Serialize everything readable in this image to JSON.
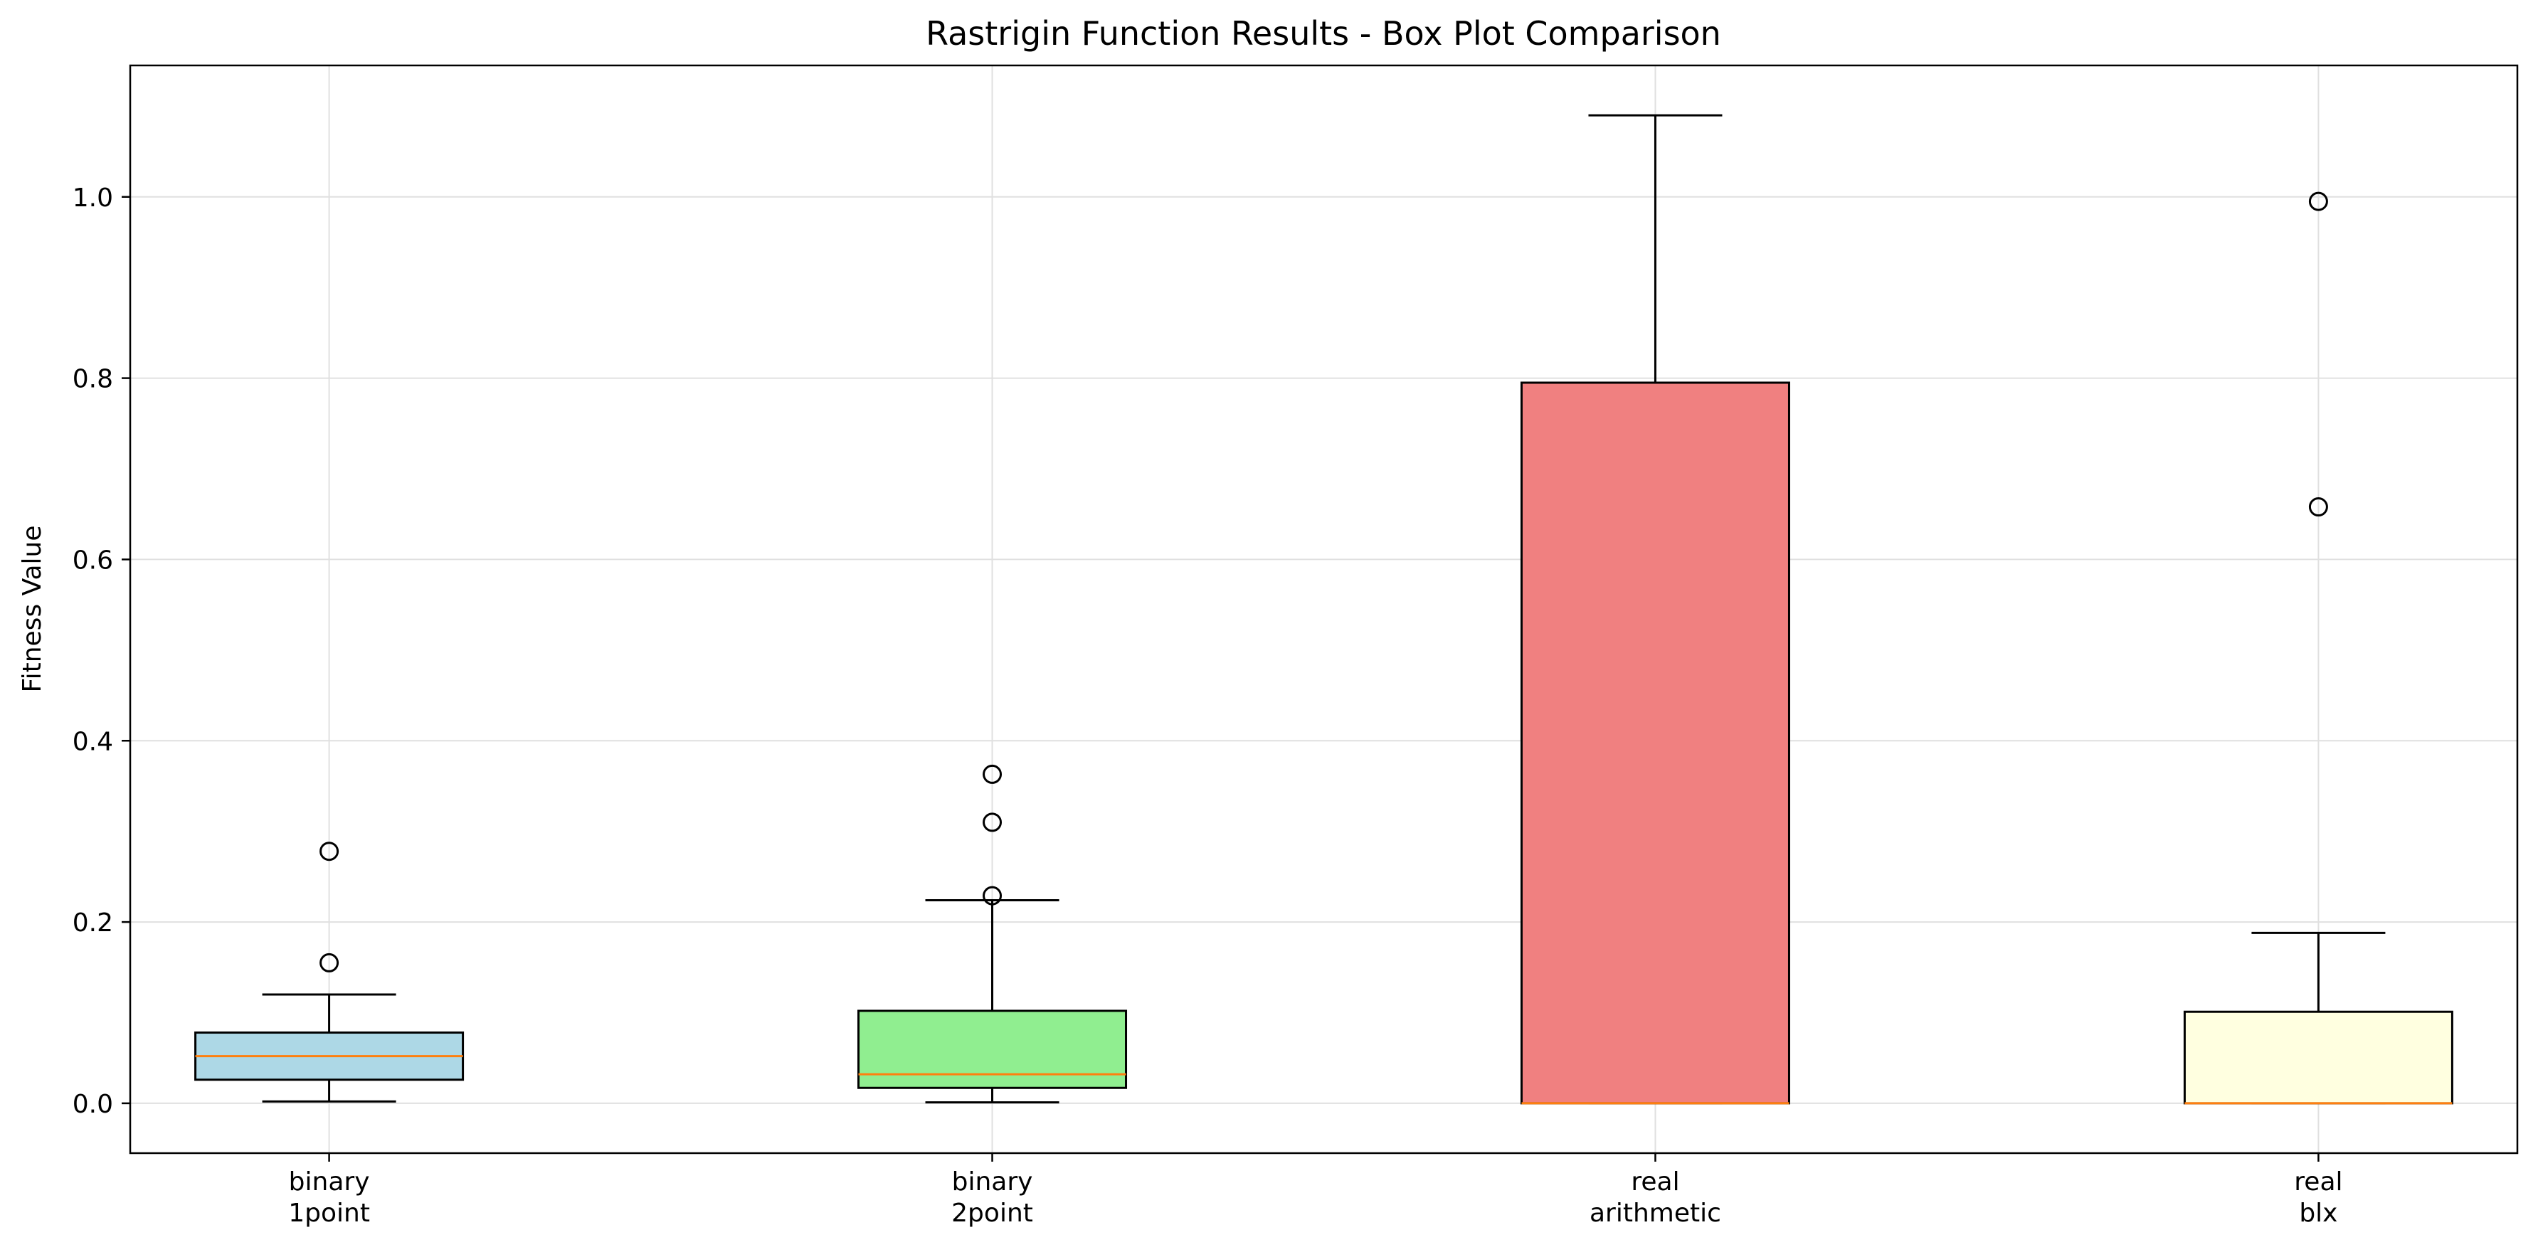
{
  "chart_data": {
    "type": "boxplot",
    "title": "Rastrigin Function Results - Box Plot Comparison",
    "ylabel": "Fitness Value",
    "xlabel": "",
    "ylim": [
      -0.055,
      1.145
    ],
    "yticks": [
      0.0,
      0.2,
      0.4,
      0.6,
      0.8,
      1.0
    ],
    "ytick_labels": [
      "0.0",
      "0.2",
      "0.4",
      "0.6",
      "0.8",
      "1.0"
    ],
    "grid": true,
    "legend": "none",
    "series": [
      {
        "category": [
          "binary",
          "1point"
        ],
        "color": "#add8e6",
        "whisker_low": 0.002,
        "q1": 0.026,
        "median": 0.052,
        "q3": 0.078,
        "whisker_high": 0.12,
        "outliers": [
          0.155,
          0.278
        ]
      },
      {
        "category": [
          "binary",
          "2point"
        ],
        "color": "#90ee90",
        "whisker_low": 0.001,
        "q1": 0.017,
        "median": 0.032,
        "q3": 0.102,
        "whisker_high": 0.224,
        "outliers": [
          0.229,
          0.31,
          0.363
        ]
      },
      {
        "category": [
          "real",
          "arithmetic"
        ],
        "color": "#f08080",
        "whisker_low": 0.0,
        "q1": 0.0,
        "median": 0.0,
        "q3": 0.795,
        "whisker_high": 1.09,
        "outliers": []
      },
      {
        "category": [
          "real",
          "blx"
        ],
        "color": "#ffffe0",
        "whisker_low": 0.0,
        "q1": 0.0,
        "median": 0.0,
        "q3": 0.101,
        "whisker_high": 0.188,
        "outliers": [
          0.658,
          0.995
        ]
      }
    ],
    "colors": {
      "median": "#ff7f0e",
      "edge": "#000000",
      "grid": "#e0e0e0"
    }
  }
}
